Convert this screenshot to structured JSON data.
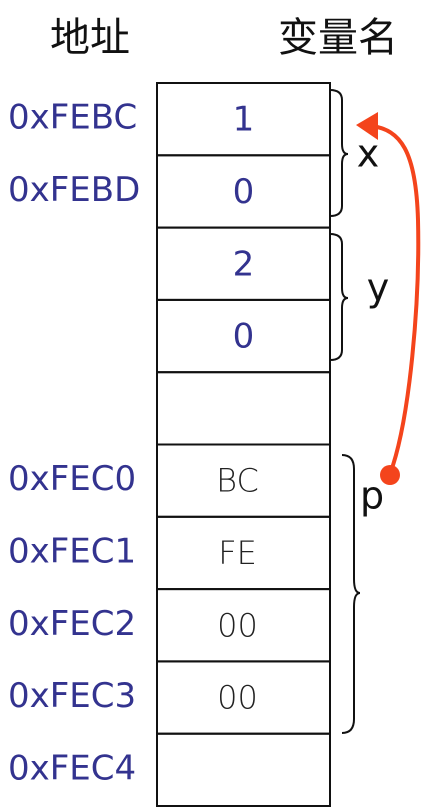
{
  "header": {
    "address": "地址",
    "variable": "变量名"
  },
  "rows": [
    {
      "address": "0xFEBC",
      "value": "1"
    },
    {
      "address": "0xFEBD",
      "value": "0"
    },
    {
      "value": "2"
    },
    {
      "value": "0"
    },
    {},
    {
      "address": "0xFEC0",
      "value": "BC"
    },
    {
      "address": "0xFEC1",
      "value": "FE"
    },
    {
      "address": "0xFEC2",
      "value": "00"
    },
    {
      "address": "0xFEC3",
      "value": "00"
    },
    {
      "address": "0xFEC4"
    }
  ],
  "variables": [
    {
      "name": "x"
    },
    {
      "name": "y"
    },
    {
      "name": "p"
    }
  ]
}
